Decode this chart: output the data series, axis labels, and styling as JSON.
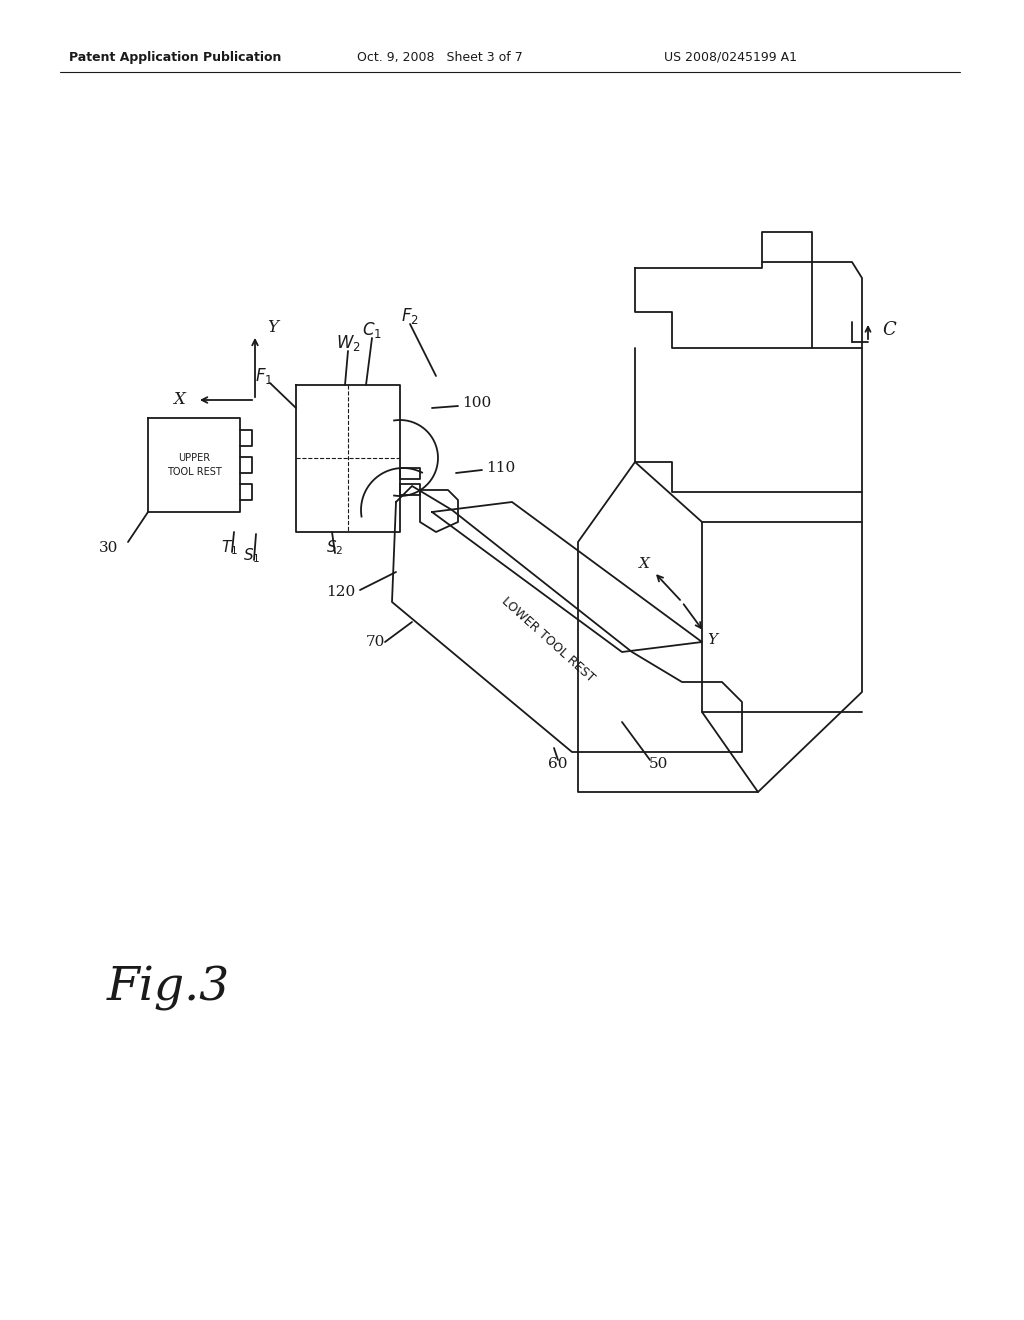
{
  "bg_color": "#ffffff",
  "line_color": "#1a1a1a",
  "header_left": "Patent Application Publication",
  "header_mid": "Oct. 9, 2008   Sheet 3 of 7",
  "header_right": "US 2008/0245199 A1",
  "fig_label": "Fig.3"
}
